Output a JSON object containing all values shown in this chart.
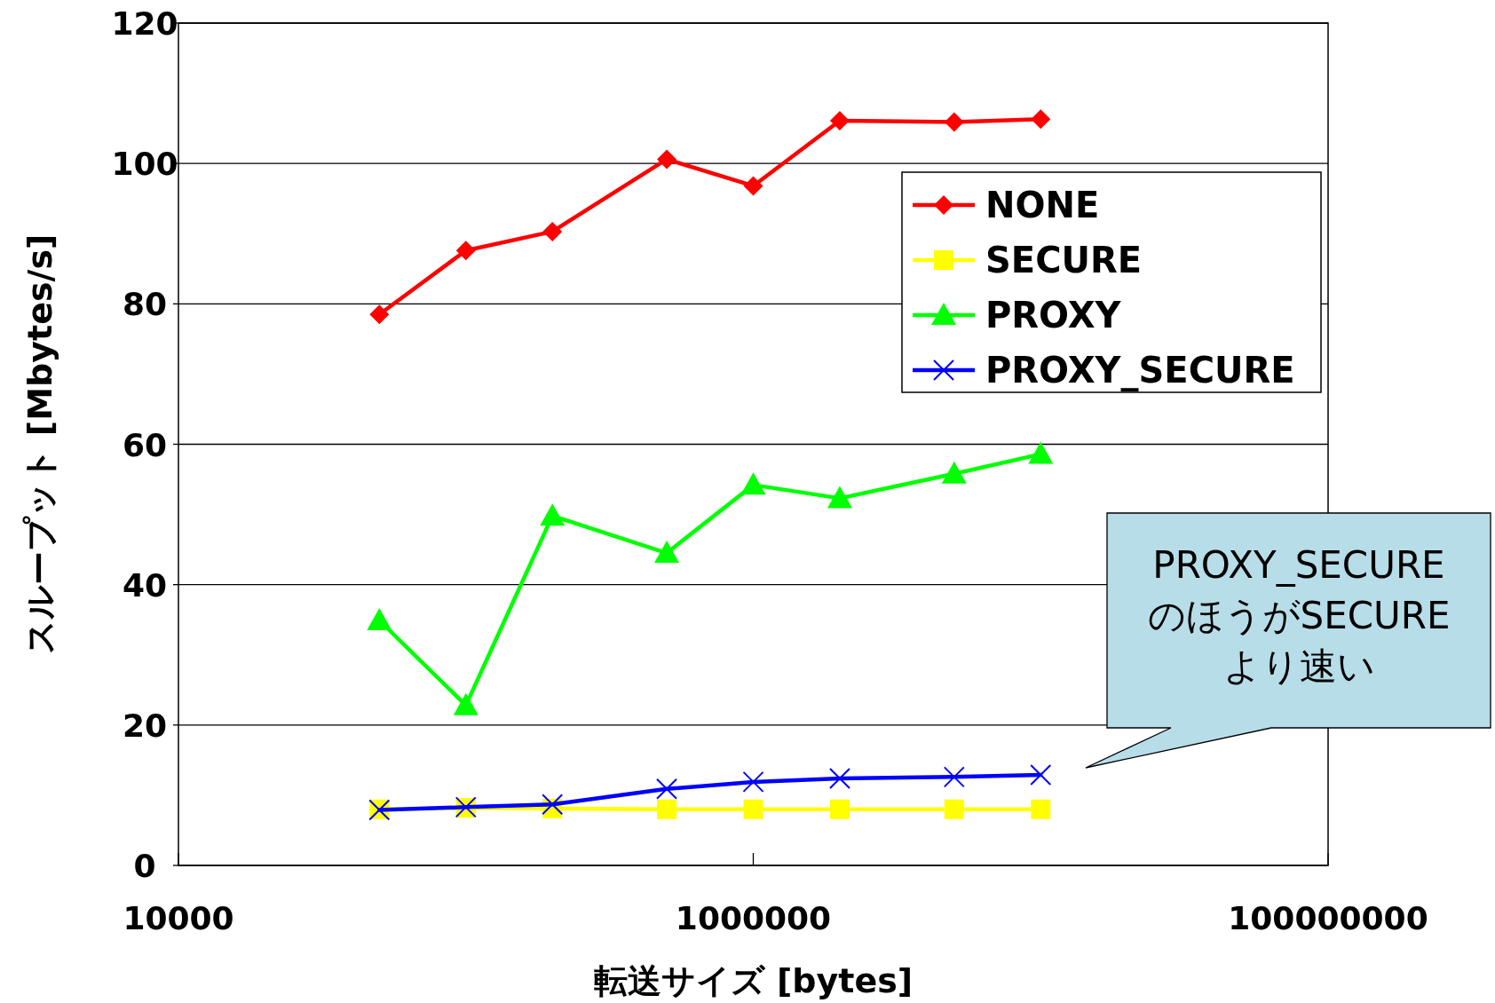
{
  "chart_data": {
    "type": "line",
    "xlabel": "転送サイズ [bytes]",
    "ylabel": "スループット [Mbytes/s]",
    "log": "x",
    "xlim": [
      10000,
      100000000
    ],
    "xticks": [
      10000,
      1000000,
      100000000
    ],
    "ylim": [
      0,
      120
    ],
    "yticks": [
      0,
      20,
      40,
      60,
      80,
      100,
      120
    ],
    "grid": "y",
    "legend": "top right",
    "line_style": "solid",
    "x": [
      50000,
      100000,
      200000,
      500000,
      1000000,
      2000000,
      5000000,
      10000000
    ],
    "series": [
      {
        "name": "NONE",
        "color": "#ff0000",
        "marker": "diamond",
        "values": [
          78.5,
          87.6,
          90.3,
          100.6,
          96.8,
          106.1,
          105.9,
          106.3
        ]
      },
      {
        "name": "SECURE",
        "color": "#ffff00",
        "marker": "square",
        "values": [
          8.0,
          8.2,
          8.1,
          8.0,
          8.0,
          8.0,
          8.0,
          8.0
        ]
      },
      {
        "name": "PROXY",
        "color": "#00ff00",
        "marker": "triangle",
        "values": [
          34.9,
          22.8,
          49.8,
          44.5,
          54.2,
          52.3,
          55.8,
          58.6
        ]
      },
      {
        "name": "PROXY_SECURE",
        "color": "#0000ff",
        "marker": "cross",
        "values": [
          7.9,
          8.3,
          8.7,
          10.9,
          11.9,
          12.4,
          12.6,
          12.9
        ]
      }
    ],
    "annotations": [
      "PROXY_SECURE\nのほうがSECURE\nより速い"
    ]
  }
}
